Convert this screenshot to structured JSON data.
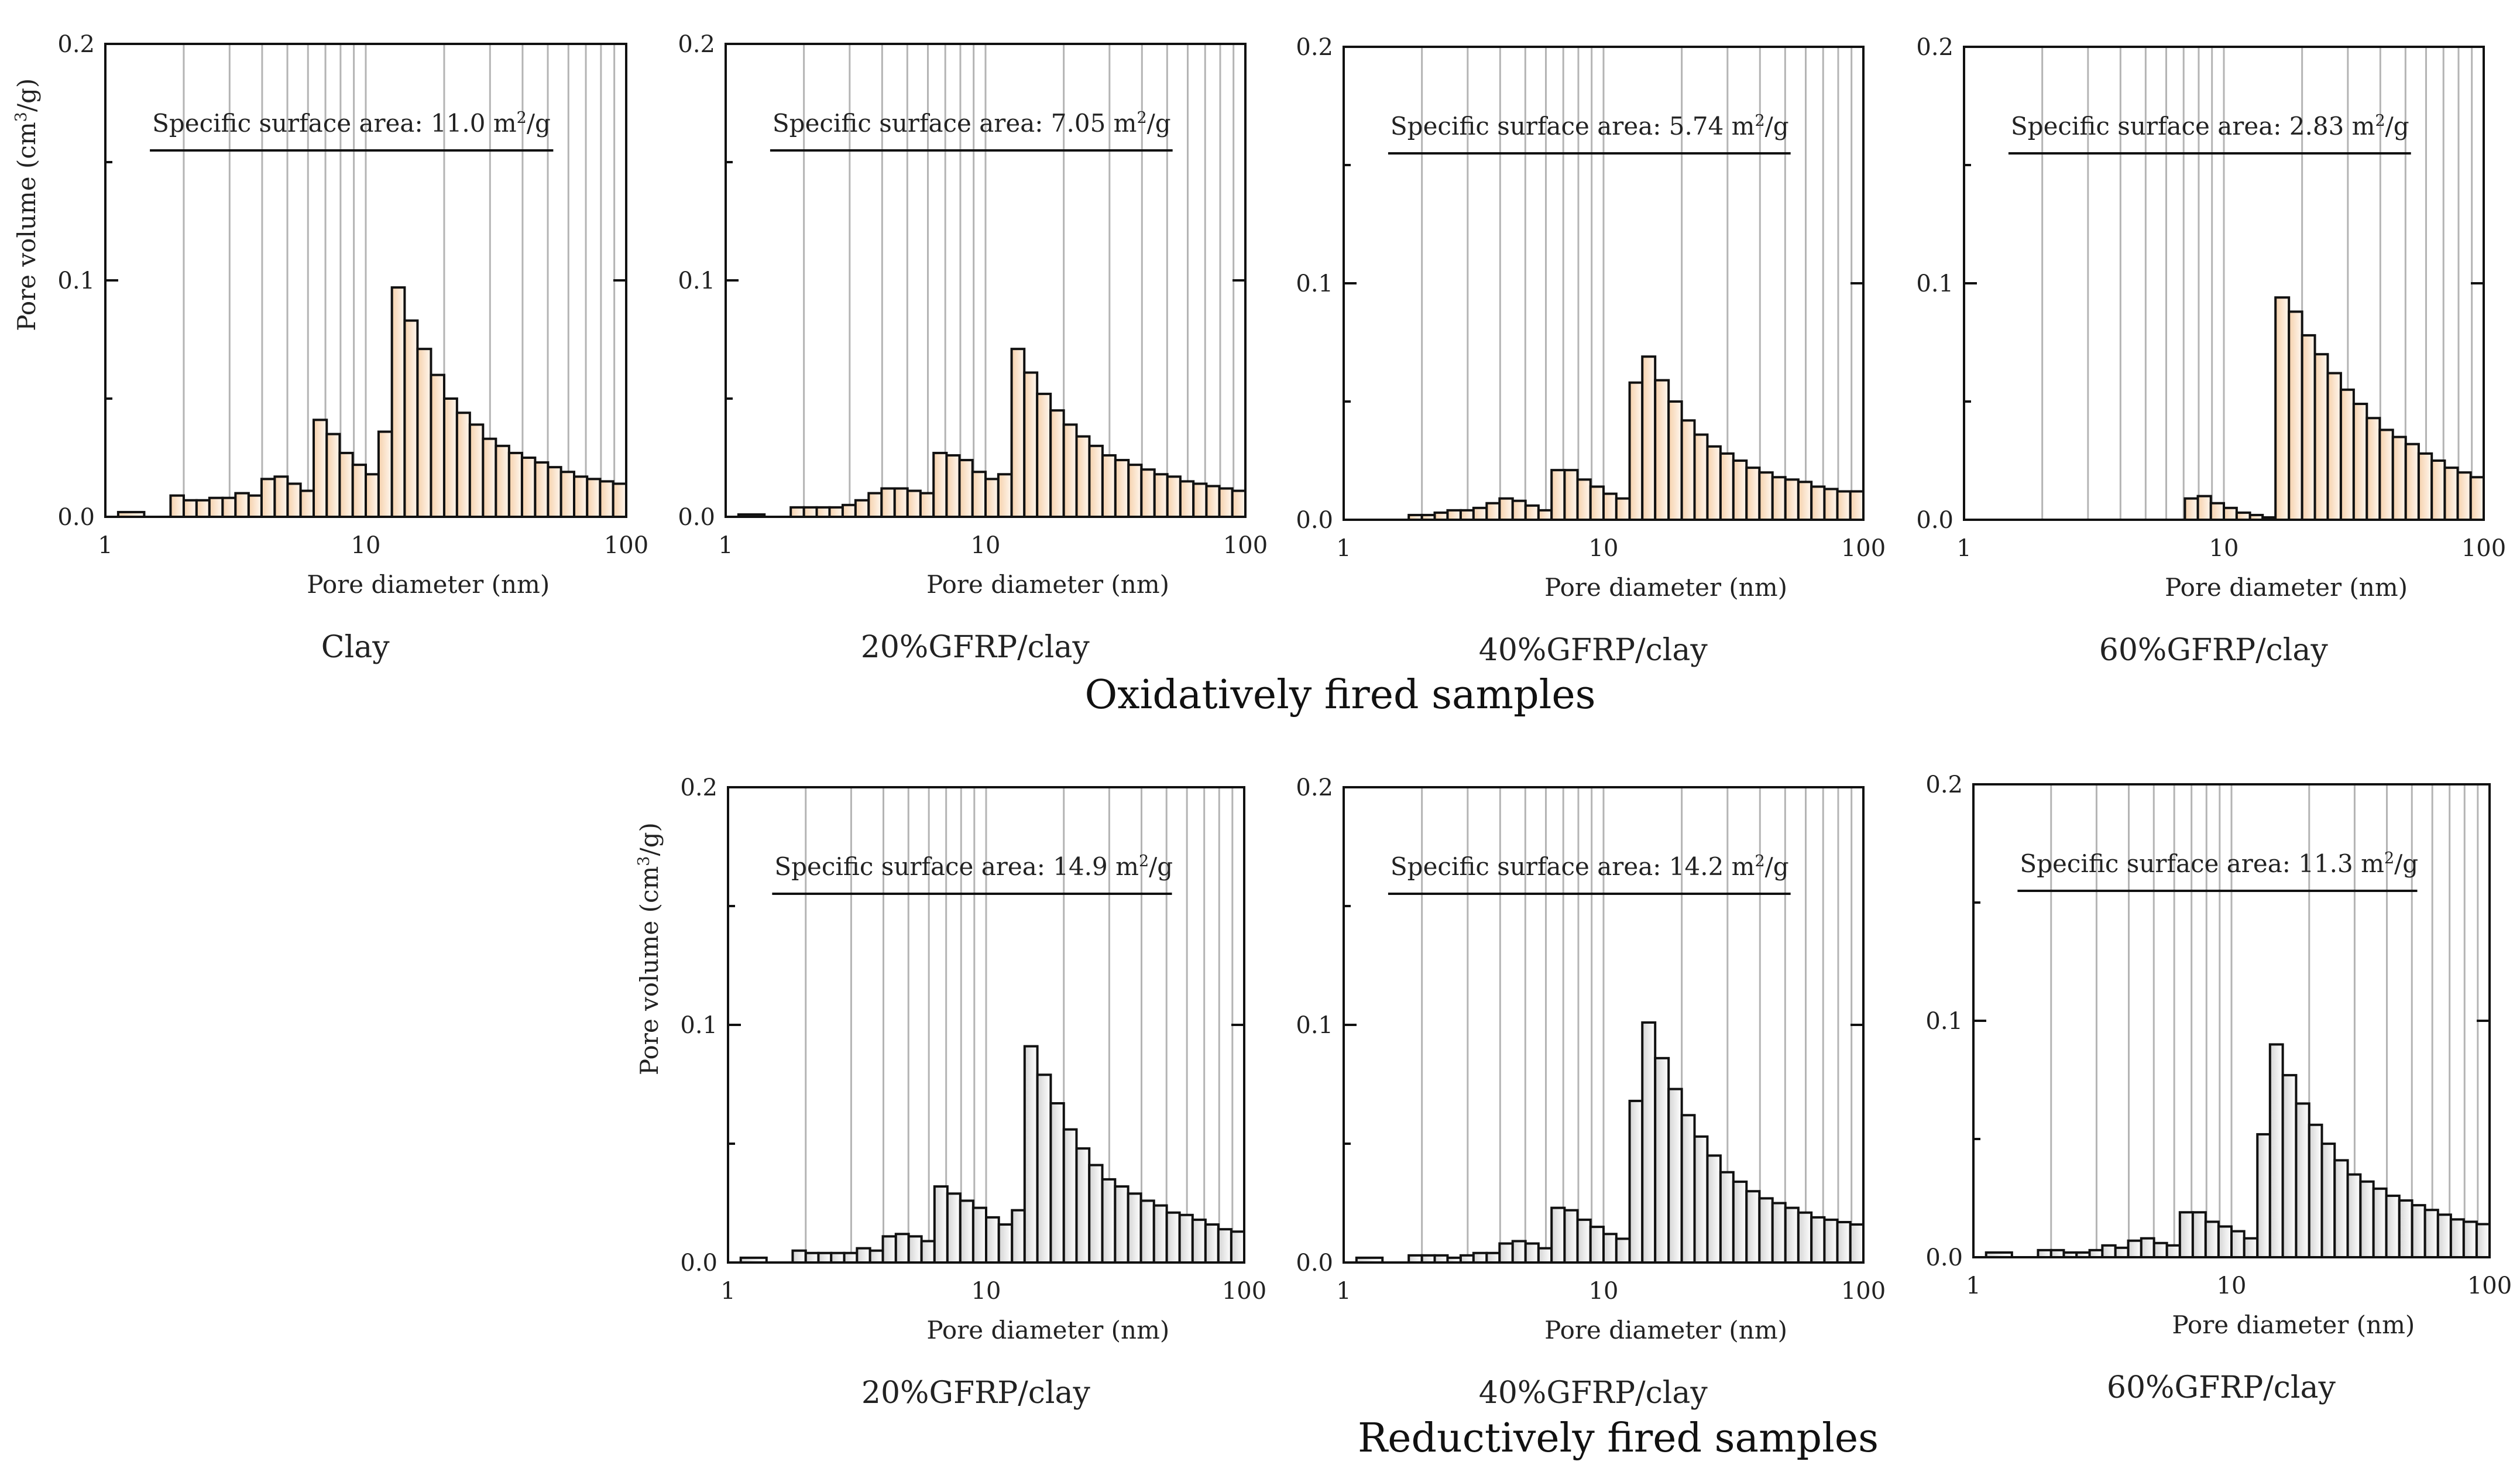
{
  "figure": {
    "group_captions": [
      "Oxidatively fired samples",
      "Reductively fired samples"
    ],
    "colors": {
      "oxidative_fill": "#f5d1ac",
      "oxidative_gradient_light": "#fff7ef",
      "reductive_fill": "#dcdcdc",
      "reductive_gradient_light": "#ffffff",
      "bar_edge": "#111111",
      "grid": "#b4b4b4",
      "axis": "#111111"
    }
  },
  "chart_data": [
    {
      "type": "bar",
      "group": "Oxidatively fired samples",
      "sample_label": "Clay",
      "fill": "oxidative",
      "annotation": "Specific surface area: 11.0 m²/g",
      "xlabel": "Pore diameter (nm)",
      "ylabel": "Pore volume (cm³/g)",
      "xscale": "log",
      "xlim": [
        1,
        100
      ],
      "ylim": [
        0,
        0.2
      ],
      "xticks": [
        1,
        10,
        100
      ],
      "yticks": [
        0.0,
        0.1,
        0.2
      ],
      "xtick_labels": [
        "1",
        "10",
        "100"
      ],
      "ytick_labels": [
        "0.0",
        "0.1",
        "0.2"
      ],
      "grid": "vertical log minor lines",
      "bin_edges": [
        1.12,
        1.41,
        1.78,
        2.0,
        2.24,
        2.51,
        2.82,
        3.16,
        3.55,
        3.98,
        4.47,
        5.01,
        5.62,
        6.31,
        7.08,
        7.94,
        8.91,
        10.0,
        11.2,
        12.6,
        14.1,
        15.8,
        17.8,
        20.0,
        22.4,
        25.1,
        28.2,
        31.6,
        35.5,
        39.8,
        44.7,
        50.1,
        56.2,
        63.1,
        70.8,
        79.4,
        89.1,
        100.0
      ],
      "values": [
        0.002,
        0,
        0.009,
        0.007,
        0.007,
        0.008,
        0.008,
        0.01,
        0.009,
        0.016,
        0.017,
        0.014,
        0.011,
        0.041,
        0.035,
        0.027,
        0.022,
        0.018,
        0.036,
        0.097,
        0.083,
        0.071,
        0.06,
        0.05,
        0.044,
        0.039,
        0.033,
        0.03,
        0.027,
        0.025,
        0.023,
        0.021,
        0.019,
        0.017,
        0.016,
        0.015,
        0.014
      ]
    },
    {
      "type": "bar",
      "group": "Oxidatively fired samples",
      "sample_label": "20%GFRP/clay",
      "fill": "oxidative",
      "annotation": "Specific surface area: 7.05 m²/g",
      "xlabel": "Pore diameter (nm)",
      "ylabel": "",
      "xscale": "log",
      "xlim": [
        1,
        100
      ],
      "ylim": [
        0,
        0.2
      ],
      "xticks": [
        1,
        10,
        100
      ],
      "yticks": [
        0.0,
        0.1,
        0.2
      ],
      "xtick_labels": [
        "1",
        "10",
        "100"
      ],
      "ytick_labels": [
        "0.0",
        "0.1",
        "0.2"
      ],
      "grid": "vertical log minor lines",
      "bin_edges": [
        1.12,
        1.41,
        1.78,
        2.0,
        2.24,
        2.51,
        2.82,
        3.16,
        3.55,
        3.98,
        4.47,
        5.01,
        5.62,
        6.31,
        7.08,
        7.94,
        8.91,
        10.0,
        11.2,
        12.6,
        14.1,
        15.8,
        17.8,
        20.0,
        22.4,
        25.1,
        28.2,
        31.6,
        35.5,
        39.8,
        44.7,
        50.1,
        56.2,
        63.1,
        70.8,
        79.4,
        89.1,
        100.0
      ],
      "values": [
        0.001,
        0,
        0.004,
        0.004,
        0.004,
        0.004,
        0.005,
        0.007,
        0.01,
        0.012,
        0.012,
        0.011,
        0.01,
        0.027,
        0.026,
        0.024,
        0.019,
        0.016,
        0.018,
        0.071,
        0.061,
        0.052,
        0.045,
        0.039,
        0.034,
        0.03,
        0.026,
        0.024,
        0.022,
        0.02,
        0.018,
        0.017,
        0.015,
        0.014,
        0.013,
        0.012,
        0.011
      ]
    },
    {
      "type": "bar",
      "group": "Oxidatively fired samples",
      "sample_label": "40%GFRP/clay",
      "fill": "oxidative",
      "annotation": "Specific surface area: 5.74 m²/g",
      "xlabel": "Pore diameter (nm)",
      "ylabel": "",
      "xscale": "log",
      "xlim": [
        1,
        100
      ],
      "ylim": [
        0,
        0.2
      ],
      "xticks": [
        1,
        10,
        100
      ],
      "yticks": [
        0.0,
        0.1,
        0.2
      ],
      "xtick_labels": [
        "1",
        "10",
        "100"
      ],
      "ytick_labels": [
        "0.0",
        "0.1",
        "0.2"
      ],
      "grid": "vertical log minor lines",
      "bin_edges": [
        1.12,
        1.41,
        1.78,
        2.0,
        2.24,
        2.51,
        2.82,
        3.16,
        3.55,
        3.98,
        4.47,
        5.01,
        5.62,
        6.31,
        7.08,
        7.94,
        8.91,
        10.0,
        11.2,
        12.6,
        14.1,
        15.8,
        17.8,
        20.0,
        22.4,
        25.1,
        28.2,
        31.6,
        35.5,
        39.8,
        44.7,
        50.1,
        56.2,
        63.1,
        70.8,
        79.4,
        89.1,
        100.0
      ],
      "values": [
        0,
        0,
        0.002,
        0.002,
        0.003,
        0.004,
        0.004,
        0.005,
        0.007,
        0.009,
        0.008,
        0.006,
        0.004,
        0.021,
        0.021,
        0.017,
        0.014,
        0.011,
        0.009,
        0.058,
        0.069,
        0.059,
        0.05,
        0.042,
        0.036,
        0.031,
        0.028,
        0.025,
        0.022,
        0.02,
        0.018,
        0.017,
        0.016,
        0.014,
        0.013,
        0.012,
        0.012
      ]
    },
    {
      "type": "bar",
      "group": "Oxidatively fired samples",
      "sample_label": "60%GFRP/clay",
      "fill": "oxidative",
      "annotation": "Specific surface area: 2.83 m²/g",
      "xlabel": "Pore diameter (nm)",
      "ylabel": "",
      "xscale": "log",
      "xlim": [
        1,
        100
      ],
      "ylim": [
        0,
        0.2
      ],
      "xticks": [
        1,
        10,
        100
      ],
      "yticks": [
        0.0,
        0.1,
        0.2
      ],
      "xtick_labels": [
        "1",
        "10",
        "100"
      ],
      "ytick_labels": [
        "0.0",
        "0.1",
        "0.2"
      ],
      "grid": "vertical log minor lines",
      "bin_edges": [
        1.12,
        1.41,
        1.78,
        2.0,
        2.24,
        2.51,
        2.82,
        3.16,
        3.55,
        3.98,
        4.47,
        5.01,
        5.62,
        6.31,
        7.08,
        7.94,
        8.91,
        10.0,
        11.2,
        12.6,
        14.1,
        15.8,
        17.8,
        20.0,
        22.4,
        25.1,
        28.2,
        31.6,
        35.5,
        39.8,
        44.7,
        50.1,
        56.2,
        63.1,
        70.8,
        79.4,
        89.1,
        100.0
      ],
      "values": [
        0,
        0,
        0,
        0,
        0,
        0,
        0,
        0,
        0,
        0,
        0,
        0,
        0,
        0,
        0.009,
        0.01,
        0.007,
        0.005,
        0.003,
        0.002,
        0.001,
        0.094,
        0.088,
        0.078,
        0.07,
        0.062,
        0.055,
        0.049,
        0.043,
        0.038,
        0.035,
        0.032,
        0.028,
        0.025,
        0.022,
        0.02,
        0.018
      ]
    },
    {
      "type": "bar",
      "group": "Reductively fired samples",
      "sample_label": "20%GFRP/clay",
      "fill": "reductive",
      "annotation": "Specific surface area: 14.9 m²/g",
      "xlabel": "Pore diameter (nm)",
      "ylabel": "Pore volume (cm³/g)",
      "xscale": "log",
      "xlim": [
        1,
        100
      ],
      "ylim": [
        0,
        0.2
      ],
      "xticks": [
        1,
        10,
        100
      ],
      "yticks": [
        0.0,
        0.1,
        0.2
      ],
      "xtick_labels": [
        "1",
        "10",
        "100"
      ],
      "ytick_labels": [
        "0.0",
        "0.1",
        "0.2"
      ],
      "grid": "vertical log minor lines",
      "bin_edges": [
        1.12,
        1.41,
        1.78,
        2.0,
        2.24,
        2.51,
        2.82,
        3.16,
        3.55,
        3.98,
        4.47,
        5.01,
        5.62,
        6.31,
        7.08,
        7.94,
        8.91,
        10.0,
        11.2,
        12.6,
        14.1,
        15.8,
        17.8,
        20.0,
        22.4,
        25.1,
        28.2,
        31.6,
        35.5,
        39.8,
        44.7,
        50.1,
        56.2,
        63.1,
        70.8,
        79.4,
        89.1,
        100.0
      ],
      "values": [
        0.002,
        0,
        0.005,
        0.004,
        0.004,
        0.004,
        0.004,
        0.006,
        0.005,
        0.011,
        0.012,
        0.011,
        0.009,
        0.032,
        0.029,
        0.026,
        0.023,
        0.019,
        0.016,
        0.022,
        0.091,
        0.079,
        0.067,
        0.056,
        0.048,
        0.041,
        0.035,
        0.032,
        0.029,
        0.026,
        0.024,
        0.021,
        0.02,
        0.018,
        0.016,
        0.014,
        0.013
      ]
    },
    {
      "type": "bar",
      "group": "Reductively fired samples",
      "sample_label": "40%GFRP/clay",
      "fill": "reductive",
      "annotation": "Specific surface area: 14.2 m²/g",
      "xlabel": "Pore diameter (nm)",
      "ylabel": "",
      "xscale": "log",
      "xlim": [
        1,
        100
      ],
      "ylim": [
        0,
        0.2
      ],
      "xticks": [
        1,
        10,
        100
      ],
      "yticks": [
        0.0,
        0.1,
        0.2
      ],
      "xtick_labels": [
        "1",
        "10",
        "100"
      ],
      "ytick_labels": [
        "0.0",
        "0.1",
        "0.2"
      ],
      "grid": "vertical log minor lines",
      "bin_edges": [
        1.12,
        1.41,
        1.78,
        2.0,
        2.24,
        2.51,
        2.82,
        3.16,
        3.55,
        3.98,
        4.47,
        5.01,
        5.62,
        6.31,
        7.08,
        7.94,
        8.91,
        10.0,
        11.2,
        12.6,
        14.1,
        15.8,
        17.8,
        20.0,
        22.4,
        25.1,
        28.2,
        31.6,
        35.5,
        39.8,
        44.7,
        50.1,
        56.2,
        63.1,
        70.8,
        79.4,
        89.1,
        100.0
      ],
      "values": [
        0.002,
        0,
        0.003,
        0.003,
        0.003,
        0.002,
        0.003,
        0.004,
        0.004,
        0.008,
        0.009,
        0.008,
        0.006,
        0.023,
        0.022,
        0.018,
        0.015,
        0.012,
        0.01,
        0.068,
        0.101,
        0.086,
        0.073,
        0.062,
        0.053,
        0.045,
        0.038,
        0.034,
        0.03,
        0.027,
        0.025,
        0.023,
        0.021,
        0.019,
        0.018,
        0.017,
        0.016
      ]
    },
    {
      "type": "bar",
      "group": "Reductively fired samples",
      "sample_label": "60%GFRP/clay",
      "fill": "reductive",
      "annotation": "Specific surface area: 11.3 m²/g",
      "xlabel": "Pore diameter (nm)",
      "ylabel": "",
      "xscale": "log",
      "xlim": [
        1,
        100
      ],
      "ylim": [
        0,
        0.2
      ],
      "xticks": [
        1,
        10,
        100
      ],
      "yticks": [
        0.0,
        0.1,
        0.2
      ],
      "xtick_labels": [
        "1",
        "10",
        "100"
      ],
      "ytick_labels": [
        "0.0",
        "0.1",
        "0.2"
      ],
      "grid": "vertical log minor lines",
      "bin_edges": [
        1.12,
        1.41,
        1.78,
        2.0,
        2.24,
        2.51,
        2.82,
        3.16,
        3.55,
        3.98,
        4.47,
        5.01,
        5.62,
        6.31,
        7.08,
        7.94,
        8.91,
        10.0,
        11.2,
        12.6,
        14.1,
        15.8,
        17.8,
        20.0,
        22.4,
        25.1,
        28.2,
        31.6,
        35.5,
        39.8,
        44.7,
        50.1,
        56.2,
        63.1,
        70.8,
        79.4,
        89.1,
        100.0
      ],
      "values": [
        0.002,
        0,
        0.003,
        0.003,
        0.002,
        0.002,
        0.003,
        0.005,
        0.004,
        0.007,
        0.008,
        0.006,
        0.005,
        0.019,
        0.019,
        0.015,
        0.013,
        0.011,
        0.008,
        0.052,
        0.09,
        0.077,
        0.065,
        0.056,
        0.048,
        0.041,
        0.035,
        0.032,
        0.029,
        0.026,
        0.024,
        0.022,
        0.02,
        0.018,
        0.016,
        0.015,
        0.014
      ]
    }
  ]
}
